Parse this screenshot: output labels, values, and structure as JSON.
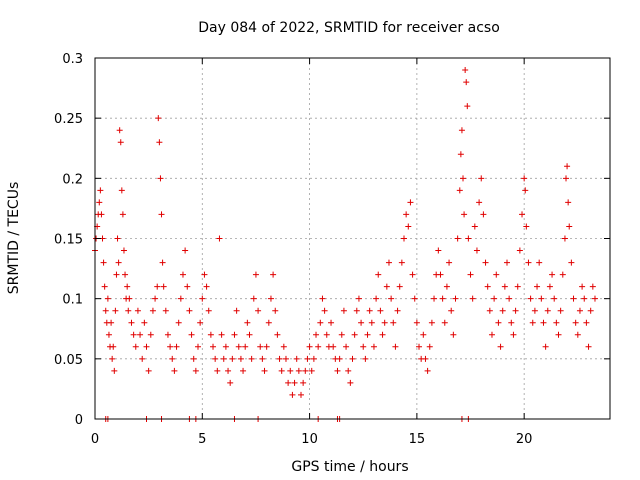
{
  "chart_data": {
    "type": "scatter",
    "title": "Day 084 of 2022, SRMTID for receiver acso",
    "xlabel": "GPS time / hours",
    "ylabel": "SRMTID / TECUs",
    "xlim": [
      0,
      24
    ],
    "ylim": [
      0,
      0.3
    ],
    "xticks": [
      0,
      5,
      10,
      15,
      20
    ],
    "xtick_labels": [
      "0",
      "5",
      "10",
      "15",
      "20"
    ],
    "yticks": [
      0,
      0.05,
      0.1,
      0.15,
      0.2,
      0.25,
      0.3
    ],
    "ytick_labels": [
      "0",
      "0.05",
      "0.1",
      "0.15",
      "0.2",
      "0.25",
      "0.3"
    ],
    "grid": true,
    "marker": "+",
    "color": "#e00000",
    "series": [
      {
        "name": "SRMTID",
        "points": [
          [
            0.0,
            0.14
          ],
          [
            0.05,
            0.15
          ],
          [
            0.1,
            0.16
          ],
          [
            0.15,
            0.17
          ],
          [
            0.2,
            0.18
          ],
          [
            0.25,
            0.19
          ],
          [
            0.3,
            0.17
          ],
          [
            0.35,
            0.15
          ],
          [
            0.4,
            0.13
          ],
          [
            0.45,
            0.11
          ],
          [
            0.5,
            0.09
          ],
          [
            0.55,
            0.08
          ],
          [
            0.6,
            0.1
          ],
          [
            0.65,
            0.07
          ],
          [
            0.7,
            0.06
          ],
          [
            0.75,
            0.08
          ],
          [
            0.8,
            0.05
          ],
          [
            0.85,
            0.06
          ],
          [
            0.9,
            0.04
          ],
          [
            0.95,
            0.09
          ],
          [
            1.0,
            0.12
          ],
          [
            1.05,
            0.15
          ],
          [
            1.1,
            0.13
          ],
          [
            1.15,
            0.24
          ],
          [
            1.2,
            0.23
          ],
          [
            1.25,
            0.19
          ],
          [
            1.3,
            0.17
          ],
          [
            1.35,
            0.14
          ],
          [
            1.4,
            0.12
          ],
          [
            1.45,
            0.1
          ],
          [
            1.5,
            0.11
          ],
          [
            1.55,
            0.09
          ],
          [
            1.6,
            0.1
          ],
          [
            1.7,
            0.08
          ],
          [
            1.8,
            0.07
          ],
          [
            1.9,
            0.06
          ],
          [
            2.0,
            0.09
          ],
          [
            2.1,
            0.07
          ],
          [
            2.2,
            0.05
          ],
          [
            2.3,
            0.08
          ],
          [
            2.4,
            0.06
          ],
          [
            2.5,
            0.04
          ],
          [
            2.6,
            0.07
          ],
          [
            2.7,
            0.09
          ],
          [
            2.8,
            0.1
          ],
          [
            2.9,
            0.11
          ],
          [
            2.95,
            0.25
          ],
          [
            3.0,
            0.23
          ],
          [
            3.05,
            0.2
          ],
          [
            3.1,
            0.17
          ],
          [
            3.15,
            0.13
          ],
          [
            3.2,
            0.11
          ],
          [
            3.3,
            0.09
          ],
          [
            3.4,
            0.07
          ],
          [
            3.5,
            0.06
          ],
          [
            3.6,
            0.05
          ],
          [
            3.7,
            0.04
          ],
          [
            3.8,
            0.06
          ],
          [
            3.9,
            0.08
          ],
          [
            4.0,
            0.1
          ],
          [
            4.1,
            0.12
          ],
          [
            4.2,
            0.14
          ],
          [
            4.3,
            0.11
          ],
          [
            4.4,
            0.09
          ],
          [
            4.5,
            0.07
          ],
          [
            4.6,
            0.05
          ],
          [
            4.7,
            0.04
          ],
          [
            4.8,
            0.06
          ],
          [
            4.9,
            0.08
          ],
          [
            5.0,
            0.1
          ],
          [
            5.1,
            0.12
          ],
          [
            5.2,
            0.11
          ],
          [
            5.3,
            0.09
          ],
          [
            5.4,
            0.07
          ],
          [
            5.5,
            0.06
          ],
          [
            5.6,
            0.05
          ],
          [
            5.7,
            0.04
          ],
          [
            5.8,
            0.15
          ],
          [
            5.9,
            0.07
          ],
          [
            6.0,
            0.05
          ],
          [
            6.1,
            0.06
          ],
          [
            6.2,
            0.04
          ],
          [
            6.3,
            0.03
          ],
          [
            6.4,
            0.05
          ],
          [
            6.5,
            0.07
          ],
          [
            6.6,
            0.09
          ],
          [
            6.7,
            0.06
          ],
          [
            6.8,
            0.05
          ],
          [
            6.9,
            0.04
          ],
          [
            7.0,
            0.06
          ],
          [
            7.1,
            0.08
          ],
          [
            7.2,
            0.07
          ],
          [
            7.3,
            0.05
          ],
          [
            7.4,
            0.1
          ],
          [
            7.5,
            0.12
          ],
          [
            7.6,
            0.09
          ],
          [
            7.7,
            0.06
          ],
          [
            7.8,
            0.05
          ],
          [
            7.9,
            0.04
          ],
          [
            8.0,
            0.06
          ],
          [
            8.1,
            0.08
          ],
          [
            8.2,
            0.1
          ],
          [
            8.3,
            0.12
          ],
          [
            8.4,
            0.09
          ],
          [
            8.5,
            0.07
          ],
          [
            8.6,
            0.05
          ],
          [
            8.7,
            0.04
          ],
          [
            8.8,
            0.06
          ],
          [
            8.9,
            0.05
          ],
          [
            9.0,
            0.03
          ],
          [
            9.1,
            0.04
          ],
          [
            9.2,
            0.02
          ],
          [
            9.3,
            0.03
          ],
          [
            9.4,
            0.05
          ],
          [
            9.5,
            0.04
          ],
          [
            9.6,
            0.02
          ],
          [
            9.7,
            0.03
          ],
          [
            9.8,
            0.04
          ],
          [
            9.9,
            0.05
          ],
          [
            10.0,
            0.06
          ],
          [
            10.1,
            0.04
          ],
          [
            10.2,
            0.05
          ],
          [
            10.3,
            0.07
          ],
          [
            10.4,
            0.06
          ],
          [
            10.5,
            0.08
          ],
          [
            10.6,
            0.1
          ],
          [
            10.7,
            0.09
          ],
          [
            10.8,
            0.07
          ],
          [
            10.9,
            0.06
          ],
          [
            11.0,
            0.08
          ],
          [
            11.1,
            0.06
          ],
          [
            11.2,
            0.05
          ],
          [
            11.3,
            0.04
          ],
          [
            11.4,
            0.05
          ],
          [
            11.5,
            0.07
          ],
          [
            11.6,
            0.09
          ],
          [
            11.7,
            0.06
          ],
          [
            11.8,
            0.04
          ],
          [
            11.9,
            0.03
          ],
          [
            12.0,
            0.05
          ],
          [
            12.1,
            0.07
          ],
          [
            12.2,
            0.09
          ],
          [
            12.3,
            0.1
          ],
          [
            12.4,
            0.08
          ],
          [
            12.5,
            0.06
          ],
          [
            12.6,
            0.05
          ],
          [
            12.7,
            0.07
          ],
          [
            12.8,
            0.09
          ],
          [
            12.9,
            0.08
          ],
          [
            13.0,
            0.06
          ],
          [
            13.1,
            0.1
          ],
          [
            13.2,
            0.12
          ],
          [
            13.3,
            0.09
          ],
          [
            13.4,
            0.07
          ],
          [
            13.5,
            0.08
          ],
          [
            13.6,
            0.11
          ],
          [
            13.7,
            0.13
          ],
          [
            13.8,
            0.1
          ],
          [
            13.9,
            0.08
          ],
          [
            14.0,
            0.06
          ],
          [
            14.1,
            0.09
          ],
          [
            14.2,
            0.11
          ],
          [
            14.3,
            0.13
          ],
          [
            14.4,
            0.15
          ],
          [
            14.5,
            0.17
          ],
          [
            14.6,
            0.16
          ],
          [
            14.7,
            0.18
          ],
          [
            14.8,
            0.12
          ],
          [
            14.9,
            0.1
          ],
          [
            15.0,
            0.08
          ],
          [
            15.1,
            0.06
          ],
          [
            15.2,
            0.05
          ],
          [
            15.3,
            0.07
          ],
          [
            15.4,
            0.05
          ],
          [
            15.5,
            0.04
          ],
          [
            15.6,
            0.06
          ],
          [
            15.7,
            0.08
          ],
          [
            15.8,
            0.1
          ],
          [
            15.9,
            0.12
          ],
          [
            16.0,
            0.14
          ],
          [
            16.1,
            0.12
          ],
          [
            16.2,
            0.1
          ],
          [
            16.3,
            0.08
          ],
          [
            16.4,
            0.11
          ],
          [
            16.5,
            0.13
          ],
          [
            16.6,
            0.09
          ],
          [
            16.7,
            0.07
          ],
          [
            16.8,
            0.1
          ],
          [
            16.9,
            0.15
          ],
          [
            17.0,
            0.19
          ],
          [
            17.05,
            0.22
          ],
          [
            17.1,
            0.24
          ],
          [
            17.15,
            0.2
          ],
          [
            17.2,
            0.17
          ],
          [
            17.25,
            0.29
          ],
          [
            17.3,
            0.28
          ],
          [
            17.35,
            0.26
          ],
          [
            17.4,
            0.15
          ],
          [
            17.5,
            0.12
          ],
          [
            17.6,
            0.1
          ],
          [
            17.7,
            0.16
          ],
          [
            17.8,
            0.14
          ],
          [
            17.9,
            0.18
          ],
          [
            18.0,
            0.2
          ],
          [
            18.1,
            0.17
          ],
          [
            18.2,
            0.13
          ],
          [
            18.3,
            0.11
          ],
          [
            18.4,
            0.09
          ],
          [
            18.5,
            0.07
          ],
          [
            18.6,
            0.1
          ],
          [
            18.7,
            0.12
          ],
          [
            18.8,
            0.08
          ],
          [
            18.9,
            0.06
          ],
          [
            19.0,
            0.09
          ],
          [
            19.1,
            0.11
          ],
          [
            19.2,
            0.13
          ],
          [
            19.3,
            0.1
          ],
          [
            19.4,
            0.08
          ],
          [
            19.5,
            0.07
          ],
          [
            19.6,
            0.09
          ],
          [
            19.7,
            0.11
          ],
          [
            19.8,
            0.14
          ],
          [
            19.9,
            0.17
          ],
          [
            20.0,
            0.2
          ],
          [
            20.05,
            0.19
          ],
          [
            20.1,
            0.16
          ],
          [
            20.2,
            0.13
          ],
          [
            20.3,
            0.1
          ],
          [
            20.4,
            0.08
          ],
          [
            20.5,
            0.09
          ],
          [
            20.6,
            0.11
          ],
          [
            20.7,
            0.13
          ],
          [
            20.8,
            0.1
          ],
          [
            20.9,
            0.08
          ],
          [
            21.0,
            0.06
          ],
          [
            21.1,
            0.09
          ],
          [
            21.2,
            0.11
          ],
          [
            21.3,
            0.12
          ],
          [
            21.4,
            0.1
          ],
          [
            21.5,
            0.08
          ],
          [
            21.6,
            0.07
          ],
          [
            21.7,
            0.09
          ],
          [
            21.8,
            0.12
          ],
          [
            21.9,
            0.15
          ],
          [
            21.95,
            0.2
          ],
          [
            22.0,
            0.21
          ],
          [
            22.05,
            0.18
          ],
          [
            22.1,
            0.16
          ],
          [
            22.2,
            0.13
          ],
          [
            22.3,
            0.1
          ],
          [
            22.4,
            0.08
          ],
          [
            22.5,
            0.07
          ],
          [
            22.6,
            0.09
          ],
          [
            22.7,
            0.11
          ],
          [
            22.8,
            0.1
          ],
          [
            22.9,
            0.08
          ],
          [
            23.0,
            0.06
          ],
          [
            23.1,
            0.09
          ],
          [
            23.2,
            0.11
          ],
          [
            23.3,
            0.1
          ],
          [
            0.5,
            0.0
          ],
          [
            0.6,
            0.0
          ],
          [
            2.4,
            0.0
          ],
          [
            3.1,
            0.0
          ],
          [
            4.4,
            0.0
          ],
          [
            4.7,
            0.0
          ],
          [
            6.5,
            0.0
          ],
          [
            7.6,
            0.0
          ],
          [
            10.4,
            0.0
          ],
          [
            11.3,
            0.0
          ],
          [
            11.4,
            0.0
          ],
          [
            17.1,
            0.0
          ],
          [
            17.4,
            0.0
          ]
        ]
      }
    ]
  }
}
